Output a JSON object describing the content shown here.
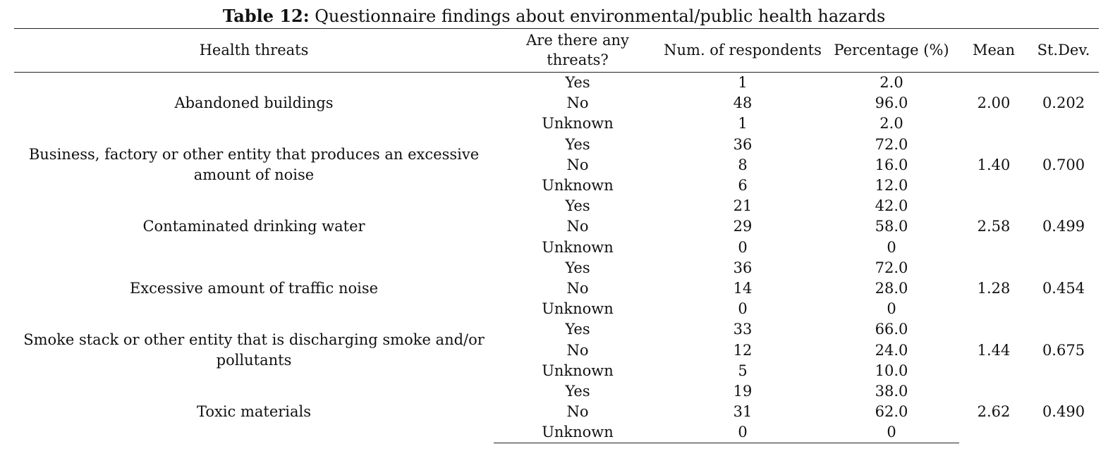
{
  "caption": {
    "label": "Table 12:",
    "text": " Questionnaire findings about environmental/public health hazards"
  },
  "headers": [
    "Health threats",
    "Are there any threats?",
    "Num. of respondents",
    "Percentage (%)",
    "Mean",
    "St.Dev."
  ],
  "groups": [
    {
      "threat": "Abandoned buildings",
      "mean": "2.00",
      "sd": "0.202",
      "rows": [
        [
          "Yes",
          "1",
          "2.0"
        ],
        [
          "No",
          "48",
          "96.0"
        ],
        [
          "Unknown",
          "1",
          "2.0"
        ]
      ]
    },
    {
      "threat": "Business, factory or other entity that produces an excessive amount of noise",
      "mean": "1.40",
      "sd": "0.700",
      "rows": [
        [
          "Yes",
          "36",
          "72.0"
        ],
        [
          "No",
          "8",
          "16.0"
        ],
        [
          "Unknown",
          "6",
          "12.0"
        ]
      ]
    },
    {
      "threat": "Contaminated drinking water",
      "mean": "2.58",
      "sd": "0.499",
      "rows": [
        [
          "Yes",
          "21",
          "42.0"
        ],
        [
          "No",
          "29",
          "58.0"
        ],
        [
          "Unknown",
          "0",
          "0"
        ]
      ]
    },
    {
      "threat": "Excessive amount of traffic noise",
      "mean": "1.28",
      "sd": "0.454",
      "rows": [
        [
          "Yes",
          "36",
          "72.0"
        ],
        [
          "No",
          "14",
          "28.0"
        ],
        [
          "Unknown",
          "0",
          "0"
        ]
      ]
    },
    {
      "threat": "Smoke stack or other entity that is discharging smoke and/or pollutants",
      "mean": "1.44",
      "sd": "0.675",
      "rows": [
        [
          "Yes",
          "33",
          "66.0"
        ],
        [
          "No",
          "12",
          "24.0"
        ],
        [
          "Unknown",
          "5",
          "10.0"
        ]
      ]
    },
    {
      "threat": "Toxic materials",
      "mean": "2.62",
      "sd": "0.490",
      "rows": [
        [
          "Yes",
          "19",
          "38.0"
        ],
        [
          "No",
          "31",
          "62.0"
        ],
        [
          "Unknown",
          "0",
          "0"
        ]
      ]
    }
  ]
}
